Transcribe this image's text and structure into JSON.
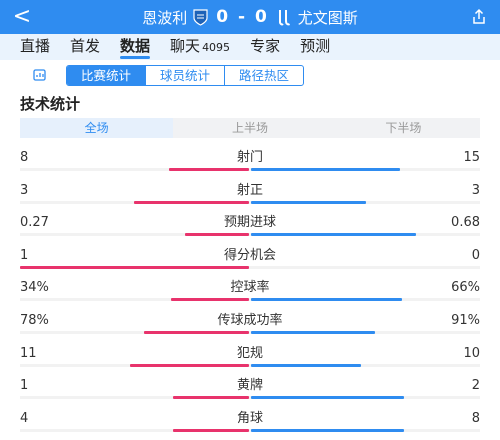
{
  "header": {
    "back": "<",
    "home_team": "恩波利",
    "away_team": "尤文图斯",
    "score": "0 - 0"
  },
  "tabs": [
    {
      "label": "直播",
      "sub": ""
    },
    {
      "label": "首发",
      "sub": ""
    },
    {
      "label": "数据",
      "sub": ""
    },
    {
      "label": "聊天",
      "sub": "4095"
    },
    {
      "label": "专家",
      "sub": ""
    },
    {
      "label": "预测",
      "sub": ""
    }
  ],
  "segments": [
    "比赛统计",
    "球员统计",
    "路径热区"
  ],
  "section_title": "技术统计",
  "periods": [
    "全场",
    "上半场",
    "下半场"
  ],
  "stats": [
    {
      "label": "射门",
      "home": "8",
      "away": "15",
      "home_share": 0.35,
      "away_share": 0.65
    },
    {
      "label": "射正",
      "home": "3",
      "away": "3",
      "home_share": 0.5,
      "away_share": 0.5
    },
    {
      "label": "预期进球",
      "home": "0.27",
      "away": "0.68",
      "home_share": 0.28,
      "away_share": 0.72
    },
    {
      "label": "得分机会",
      "home": "1",
      "away": "0",
      "home_share": 1.0,
      "away_share": 0.0
    },
    {
      "label": "控球率",
      "home": "34%",
      "away": "66%",
      "home_share": 0.34,
      "away_share": 0.66
    },
    {
      "label": "传球成功率",
      "home": "78%",
      "away": "91%",
      "home_share": 0.46,
      "away_share": 0.54
    },
    {
      "label": "犯规",
      "home": "11",
      "away": "10",
      "home_share": 0.52,
      "away_share": 0.48
    },
    {
      "label": "黄牌",
      "home": "1",
      "away": "2",
      "home_share": 0.33,
      "away_share": 0.67
    },
    {
      "label": "角球",
      "home": "4",
      "away": "8",
      "home_share": 0.33,
      "away_share": 0.67
    }
  ],
  "colors": {
    "accent": "#2f8cf0",
    "home": "#e8336c",
    "away": "#2f8cf0"
  }
}
